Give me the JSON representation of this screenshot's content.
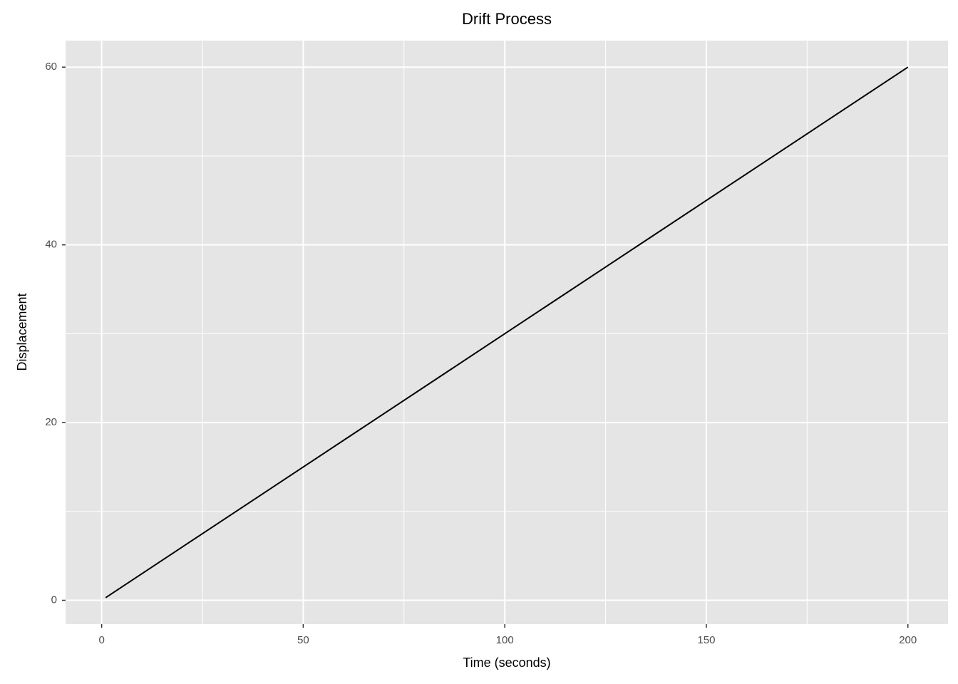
{
  "chart_data": {
    "type": "line",
    "title": "Drift Process",
    "x_label": "Time (seconds)",
    "y_label": "Displacement",
    "x": [
      1,
      200
    ],
    "series": [
      {
        "name": "Displacement",
        "color": "#000000",
        "values": [
          0.3,
          60
        ]
      }
    ],
    "xlim": [
      -8.95,
      209.95
    ],
    "xticks": [
      0,
      50,
      100,
      150,
      200
    ],
    "ylim": [
      -2.685,
      62.985
    ],
    "yticks": [
      0,
      20,
      40,
      60
    ],
    "grid": true,
    "minor_grid": true,
    "panel_color": "#e5e5e5"
  }
}
